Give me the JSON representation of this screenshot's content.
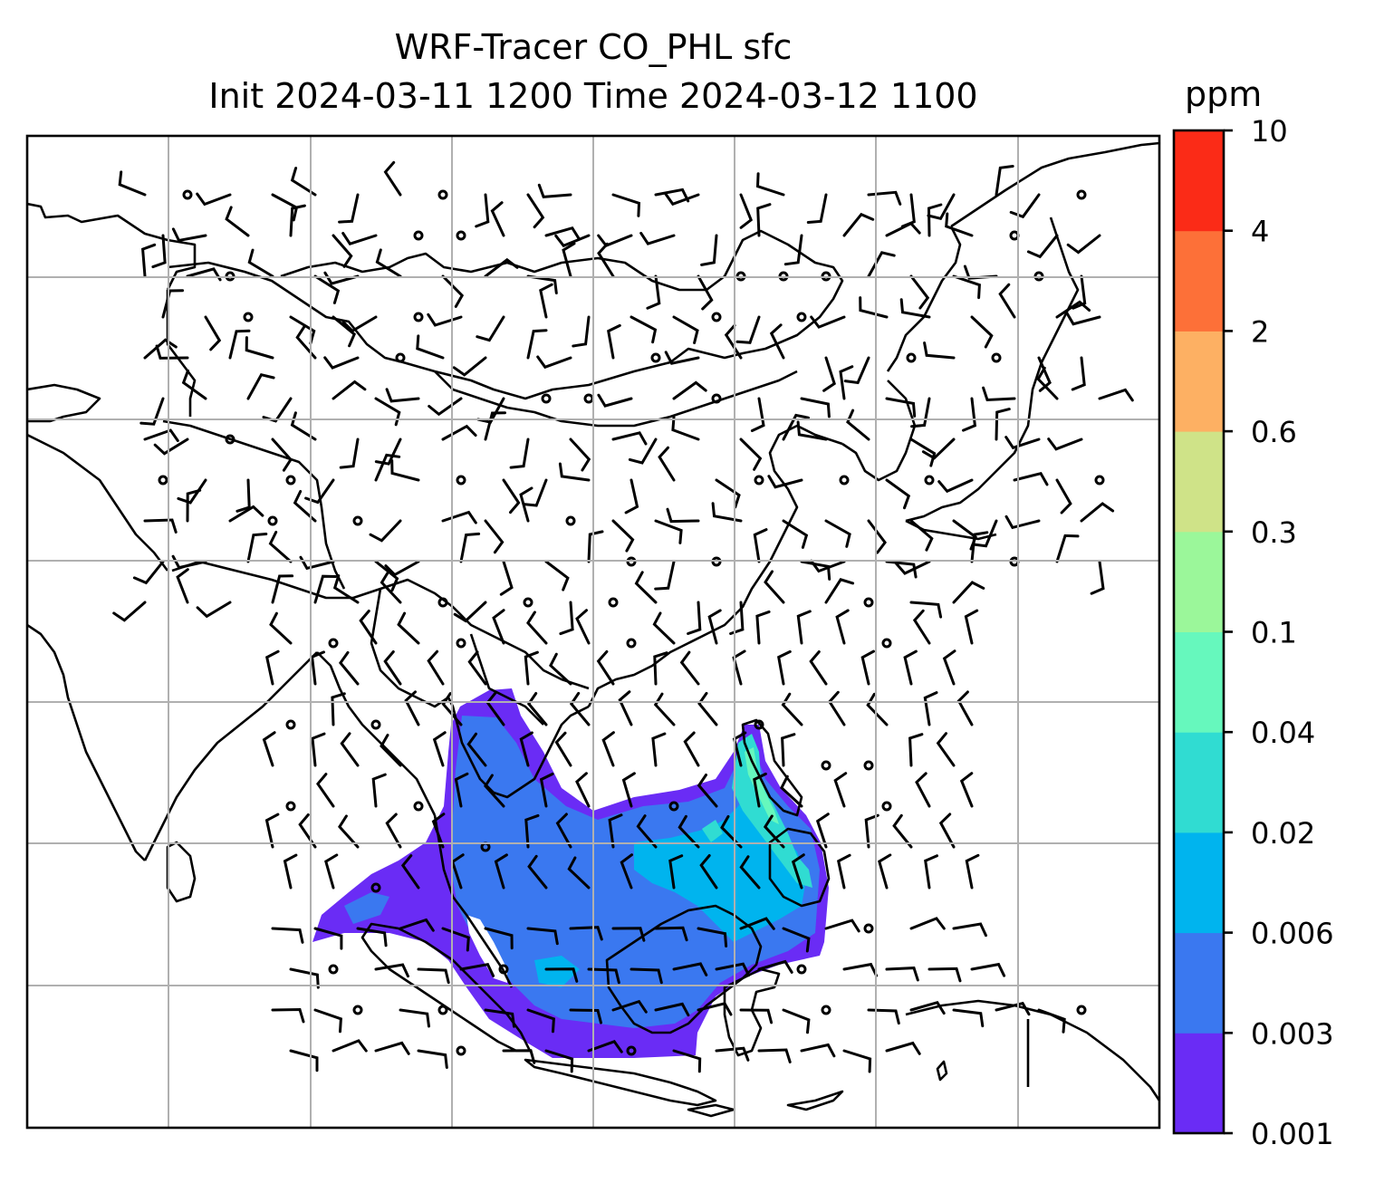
{
  "title": {
    "line1": "WRF-Tracer CO_PHL sfc",
    "line2": "Init 2024-03-11 1200 Time 2024-03-12 1100"
  },
  "colorbar": {
    "unit_label": "ppm",
    "levels": [
      "0.001",
      "0.003",
      "0.006",
      "0.02",
      "0.04",
      "0.1",
      "0.3",
      "0.6",
      "2",
      "4",
      "10"
    ],
    "colors": [
      "#6a2cf5",
      "#3a78f0",
      "#00b4ee",
      "#30dcd2",
      "#66f8bd",
      "#9bf79a",
      "#cfe388",
      "#fdb063",
      "#fd7038",
      "#fb2b17"
    ]
  },
  "map": {
    "gridlines": true,
    "coastline_color": "#000000",
    "grid_color": "#b0b0b0",
    "wind_barbs": true
  }
}
